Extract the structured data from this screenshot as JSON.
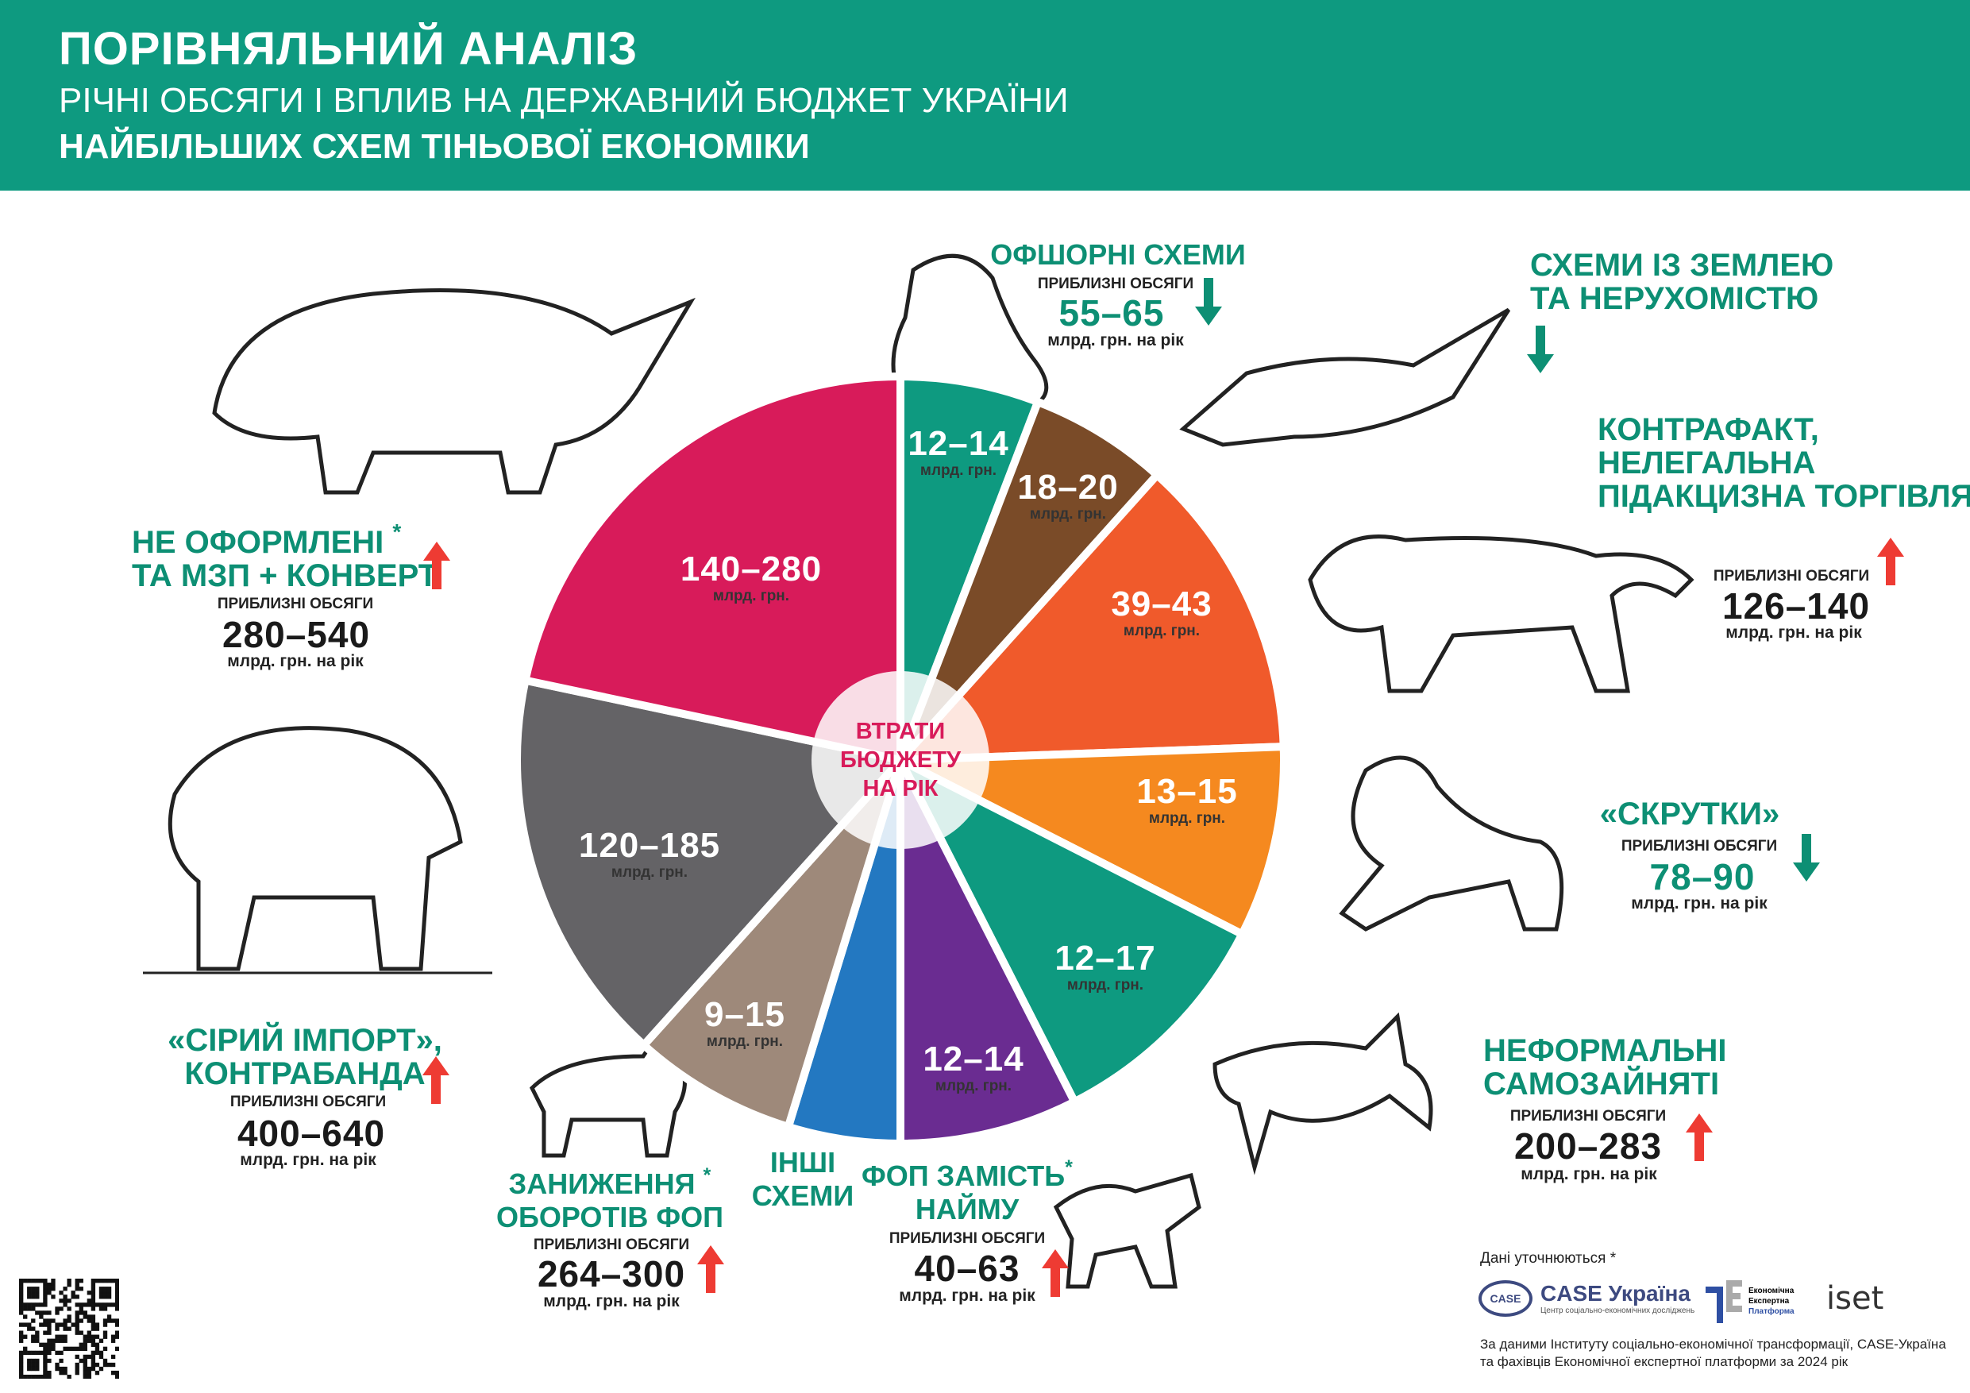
{
  "header": {
    "title": "ПОРІВНЯЛЬНИЙ АНАЛІЗ",
    "subtitle": "РІЧНІ ОБСЯГИ І ВПЛИВ НА ДЕРЖАВНИЙ БЮДЖЕТ УКРАЇНИ",
    "subtitle2": "НАЙБІЛЬШИХ СХЕМ ТІНЬОВОЇ ЕКОНОМІКИ"
  },
  "colors": {
    "header_bg": "#0e9a80",
    "accent_text": "#0d8f74",
    "arrow_up": "#ee3b33",
    "arrow_down": "#0d8f74"
  },
  "chart_data": {
    "type": "pie",
    "center_label": [
      "ВТРАТИ",
      "БЮДЖЕТУ",
      "НА РІК"
    ],
    "unit": "млрд. грн.",
    "slices": [
      {
        "label": "12–14",
        "range": [
          12,
          14
        ],
        "color": "#0e9a80"
      },
      {
        "label": "18–20",
        "range": [
          18,
          20
        ],
        "color": "#7a4b28"
      },
      {
        "label": "39–43",
        "range": [
          39,
          43
        ],
        "color": "#f05a2b"
      },
      {
        "label": "13–15",
        "range": [
          13,
          15
        ],
        "color": "#f5891f"
      },
      {
        "label": "12–17",
        "range": [
          12,
          17
        ],
        "color": "#0e9a80"
      },
      {
        "label": "12–14",
        "range": [
          12,
          14
        ],
        "color": "#6a2c91"
      },
      {
        "label": "",
        "range": null,
        "color": "#2378c1"
      },
      {
        "label": "9–15",
        "range": [
          9,
          15
        ],
        "color": "#9e897a"
      },
      {
        "label": "120–185",
        "range": [
          120,
          185
        ],
        "color": "#646366"
      },
      {
        "label": "140–280",
        "range": [
          140,
          280
        ],
        "color": "#d81b5a"
      }
    ]
  },
  "approx_label": "ПРИБЛИЗНІ ОБСЯГИ",
  "per_year_unit": "млрд. грн. на рік",
  "schemes": {
    "offshore": {
      "title": "ОФШОРНІ СХЕМИ",
      "volume": "55–65",
      "trend": "down",
      "icon": "walrus"
    },
    "land": {
      "title": [
        "СХЕМИ ІЗ ЗЕМЛЕЮ",
        "ТА НЕРУХОМІСТЮ"
      ],
      "trend": "down",
      "icon": "crocodile"
    },
    "counterfeit": {
      "title": [
        "КОНТРАФАКТ,",
        "НЕЛЕГАЛЬНА",
        "ПІДАКЦИЗНА ТОРГІВЛЯ"
      ],
      "volume": "126–140",
      "trend": "up",
      "icon": "tiger"
    },
    "skrutky": {
      "title": "«СКРУТКИ»",
      "volume": "78–90",
      "trend": "down",
      "icon": "lion"
    },
    "informal_self_employed": {
      "title": [
        "НЕФОРМАЛЬНІ",
        "САМОЗАЙНЯТІ"
      ],
      "volume": "200–283",
      "trend": "up",
      "icon": "shark"
    },
    "unregistered": {
      "title": [
        "НЕ ОФОРМЛЕНІ",
        "ТА МЗП + КОНВЕРТ"
      ],
      "asterisk": "*",
      "volume": "280–540",
      "trend": "up",
      "icon": "rhino"
    },
    "grey_import": {
      "title": [
        "«СІРИЙ ІМПОРТ»,",
        "КОНТРАБАНДА"
      ],
      "volume": "400–640",
      "trend": "up",
      "icon": "bear"
    },
    "fop_underreporting": {
      "title": [
        "ЗАНИЖЕННЯ",
        "ОБОРОТІВ ФОП"
      ],
      "asterisk": "*",
      "volume": "264–300",
      "trend": "up",
      "icon": "lynx"
    },
    "other": {
      "title": [
        "ІНШІ",
        "СХЕМИ"
      ]
    },
    "fop_instead_hiring": {
      "title": [
        "ФОП ЗАМІСТЬ",
        "НАЙМУ"
      ],
      "asterisk": "*",
      "volume": "40–63",
      "trend": "up",
      "icon": "wolf"
    }
  },
  "footer": {
    "note": "Дані уточнюються *",
    "logos": {
      "case": {
        "badge": "CASE",
        "name": "CASE Україна",
        "tagline": "Центр соціально-економічних досліджень"
      },
      "eep": {
        "lines": [
          "Економічна",
          "Експертна",
          "Платформа"
        ]
      },
      "iset": {
        "name": "iset"
      }
    },
    "source": [
      "За даними Інституту соціально-економічної трансформації, CASE-Україна",
      "та фахівців Економічної експертної платформи за 2024 рік"
    ]
  }
}
